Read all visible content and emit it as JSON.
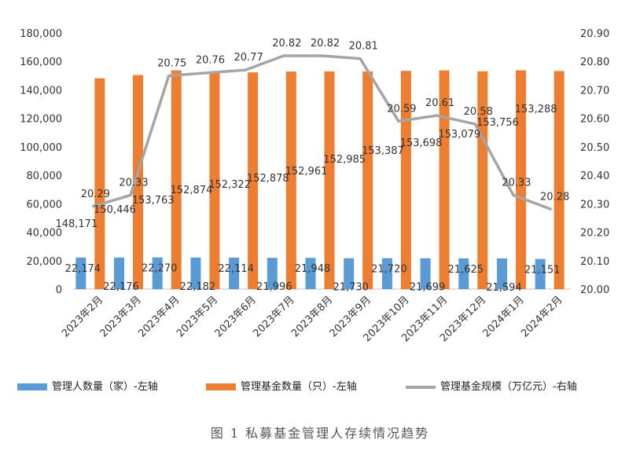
{
  "chart_data": {
    "type": "bar",
    "categories": [
      "2023年2月",
      "2023年3月",
      "2023年4月",
      "2023年5月",
      "2023年6月",
      "2023年7月",
      "2023年8月",
      "2023年9月",
      "2023年10月",
      "2023年11月",
      "2023年12月",
      "2024年1月",
      "2024年2月"
    ],
    "series": [
      {
        "name": "管理人数量（家）-左轴",
        "axis": "left",
        "type": "bar",
        "color": "#5B9BD5",
        "values": [
          22174,
          22176,
          22270,
          22182,
          22114,
          21996,
          21948,
          21730,
          21720,
          21699,
          21625,
          21594,
          21151
        ],
        "labels": [
          "22,174",
          "22,176",
          "22,270",
          "22,182",
          "22,114",
          "21,996",
          "21,948",
          "21,730",
          "21,720",
          "21,699",
          "21,625",
          "21,594",
          "21,151"
        ]
      },
      {
        "name": "管理基金数量（只）-左轴",
        "axis": "left",
        "type": "bar",
        "color": "#ED7D31",
        "values": [
          148171,
          150446,
          153763,
          152874,
          152322,
          152878,
          152961,
          152985,
          153387,
          153698,
          153079,
          153756,
          153288
        ],
        "labels": [
          "148,171",
          "150,446",
          "153,763",
          "152,874",
          "152,322",
          "152,878",
          "152,961",
          "152,985",
          "153,387",
          "153,698",
          "153,079",
          "153,756",
          "153,288"
        ]
      },
      {
        "name": "管理基金规模（万亿元）-右轴",
        "axis": "right",
        "type": "line",
        "color": "#A5A5A5",
        "values": [
          20.29,
          20.33,
          20.75,
          20.76,
          20.77,
          20.82,
          20.82,
          20.81,
          20.59,
          20.61,
          20.58,
          20.33,
          20.28
        ],
        "labels": [
          "20.29",
          "20.33",
          "20.75",
          "20.76",
          "20.77",
          "20.82",
          "20.82",
          "20.81",
          "20.59",
          "20.61",
          "20.58",
          "20.33",
          "20.28"
        ]
      }
    ],
    "y_left": {
      "min": 0,
      "max": 180000,
      "step": 20000,
      "tick_labels": [
        "0",
        "20,000",
        "40,000",
        "60,000",
        "80,000",
        "100,000",
        "120,000",
        "140,000",
        "160,000",
        "180,000"
      ]
    },
    "y_right": {
      "min": 20.0,
      "max": 20.9,
      "step": 0.1,
      "tick_labels": [
        "20.00",
        "20.10",
        "20.20",
        "20.30",
        "20.40",
        "20.50",
        "20.60",
        "20.70",
        "20.80",
        "20.90"
      ]
    },
    "legend_position": "bottom",
    "title": ""
  },
  "caption": "图 1  私募基金管理人存续情况趋势"
}
